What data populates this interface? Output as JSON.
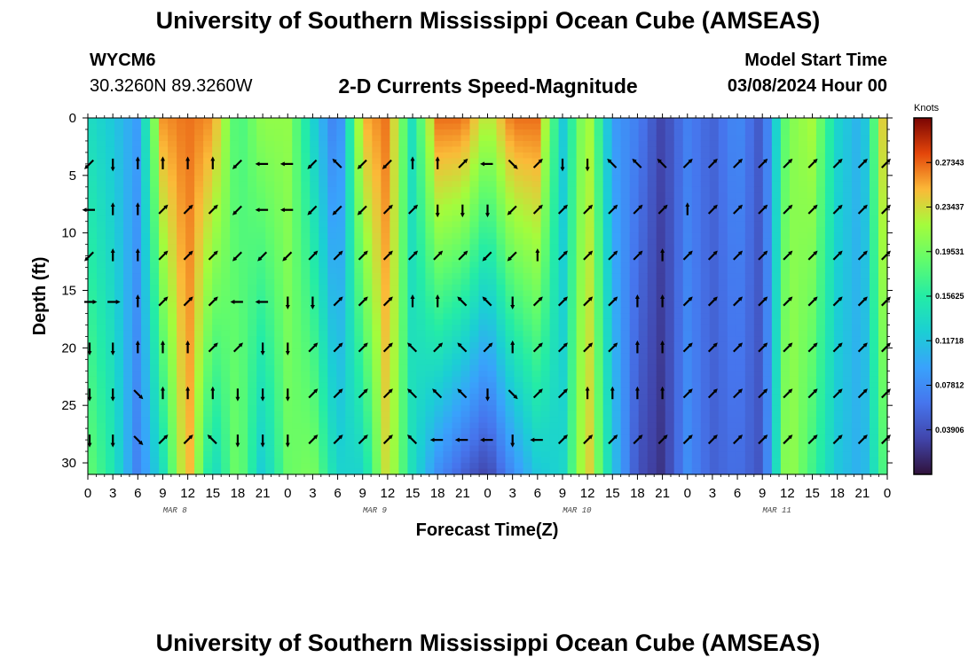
{
  "page_title": "University of Southern Mississippi Ocean Cube (AMSEAS)",
  "station": {
    "id": "WYCM6",
    "coords": "30.3260N  89.3260W"
  },
  "model_start": {
    "label": "Model Start Time",
    "value": "03/08/2024 Hour 00"
  },
  "plot_title": "2-D Currents Speed-Magnitude",
  "footer_title": "University of Southern Mississippi Ocean Cube (AMSEAS)",
  "colors": {
    "low": "#30123b",
    "mid": "#a4fc3c",
    "high": "#7a0403"
  },
  "chart_data": {
    "type": "heatmap",
    "title": "2-D Currents Speed-Magnitude",
    "xlabel": "Forecast Time(Z)",
    "ylabel": "Depth (ft)",
    "x_ticks": [
      "0",
      "3",
      "6",
      "9",
      "12",
      "15",
      "18",
      "21",
      "0",
      "3",
      "6",
      "9",
      "12",
      "15",
      "18",
      "21",
      "0",
      "3",
      "6",
      "9",
      "12",
      "15",
      "18",
      "21",
      "0",
      "3",
      "6",
      "9",
      "12",
      "15",
      "18",
      "21",
      "0"
    ],
    "date_labels": [
      "MAR 8",
      "MAR 9",
      "MAR 10",
      "MAR 11"
    ],
    "y_ticks": [
      0,
      5,
      10,
      15,
      20,
      25,
      30
    ],
    "ylim": [
      0,
      31
    ],
    "xlim_hours": [
      0,
      96
    ],
    "colorbar": {
      "unit": "Knots",
      "ticks": [
        "0.27343",
        "0.23437",
        "0.19531",
        "0.15625",
        "0.11718",
        "0.07812",
        "0.03906"
      ],
      "range": [
        0,
        0.3125
      ]
    },
    "hours": [
      0,
      3,
      6,
      9,
      12,
      15,
      18,
      21,
      24,
      27,
      30,
      33,
      36,
      39,
      42,
      45,
      48,
      51,
      54,
      57,
      60,
      63,
      66,
      69,
      72,
      75,
      78,
      81,
      84,
      87,
      90,
      93,
      96
    ],
    "speed_surface": [
      0.14,
      0.12,
      0.09,
      0.26,
      0.27,
      0.26,
      0.17,
      0.21,
      0.21,
      0.13,
      0.06,
      0.25,
      0.27,
      0.14,
      0.27,
      0.27,
      0.22,
      0.27,
      0.27,
      0.12,
      0.23,
      0.09,
      0.07,
      0.03,
      0.07,
      0.05,
      0.08,
      0.04,
      0.2,
      0.22,
      0.13,
      0.1,
      0.27
    ],
    "speed_bottom": [
      0.19,
      0.15,
      0.07,
      0.14,
      0.26,
      0.13,
      0.2,
      0.12,
      0.19,
      0.2,
      0.13,
      0.13,
      0.24,
      0.14,
      0.08,
      0.05,
      0.03,
      0.08,
      0.12,
      0.13,
      0.25,
      0.12,
      0.04,
      0.02,
      0.08,
      0.05,
      0.06,
      0.04,
      0.22,
      0.17,
      0.12,
      0.1,
      0.19
    ],
    "arrow_depths_ft": [
      4,
      8,
      12,
      16,
      20,
      24,
      28
    ],
    "arrow_directions_deg": [
      [
        225,
        180,
        0,
        0,
        0,
        0,
        225,
        270,
        270,
        225,
        315,
        225,
        225,
        0,
        0,
        45,
        270,
        135,
        45,
        180,
        180,
        315,
        315,
        315,
        45,
        45,
        45,
        45,
        45,
        45,
        45,
        45,
        45
      ],
      [
        270,
        0,
        0,
        45,
        45,
        45,
        225,
        270,
        270,
        225,
        225,
        225,
        45,
        45,
        180,
        180,
        180,
        225,
        45,
        45,
        45,
        45,
        45,
        45,
        0,
        45,
        45,
        45,
        45,
        45,
        45,
        45,
        45
      ],
      [
        225,
        0,
        0,
        45,
        45,
        45,
        225,
        225,
        225,
        45,
        45,
        45,
        45,
        45,
        45,
        45,
        225,
        225,
        0,
        45,
        45,
        45,
        45,
        0,
        45,
        45,
        45,
        45,
        45,
        45,
        45,
        45,
        45
      ],
      [
        90,
        90,
        0,
        45,
        45,
        45,
        270,
        270,
        180,
        180,
        45,
        45,
        45,
        0,
        0,
        315,
        315,
        180,
        45,
        45,
        45,
        45,
        0,
        0,
        45,
        45,
        45,
        45,
        45,
        45,
        45,
        45,
        45
      ],
      [
        180,
        180,
        0,
        0,
        0,
        45,
        45,
        180,
        180,
        45,
        45,
        45,
        45,
        315,
        45,
        315,
        45,
        0,
        45,
        45,
        45,
        45,
        0,
        0,
        45,
        45,
        45,
        45,
        45,
        45,
        45,
        45,
        45
      ],
      [
        180,
        180,
        135,
        0,
        0,
        0,
        180,
        180,
        180,
        45,
        45,
        45,
        45,
        315,
        315,
        315,
        180,
        135,
        45,
        45,
        0,
        0,
        0,
        0,
        45,
        45,
        45,
        45,
        45,
        45,
        45,
        45,
        45
      ],
      [
        180,
        180,
        135,
        45,
        45,
        315,
        180,
        180,
        180,
        45,
        45,
        45,
        45,
        315,
        270,
        270,
        270,
        180,
        270,
        45,
        45,
        45,
        45,
        45,
        45,
        45,
        45,
        45,
        45,
        45,
        45,
        45,
        45
      ]
    ]
  }
}
